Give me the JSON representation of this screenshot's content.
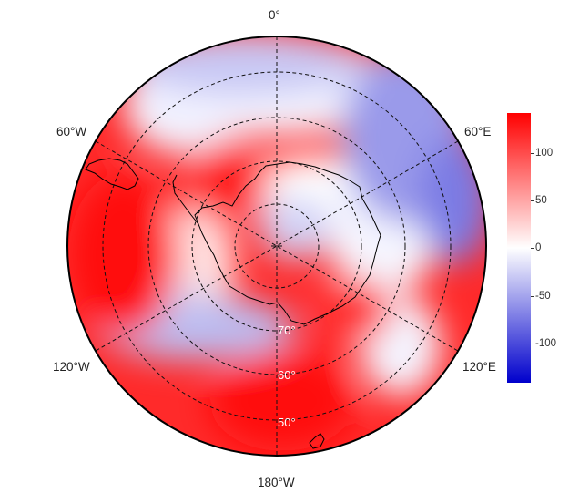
{
  "map": {
    "projection": "south polar stereographic",
    "field": "diverging anomaly (blue negative, red positive)",
    "longitude_labels": {
      "top": "0°",
      "bottom": "180°W",
      "upper_left": "60°W",
      "upper_right": "60°E",
      "lower_left": "120°W",
      "lower_right": "120°E"
    },
    "latitude_labels": [
      "70°",
      "60°",
      "50°"
    ],
    "graticule": {
      "style": "dashed",
      "color": "#111111"
    }
  },
  "colorbar": {
    "min_color": "#0000cc",
    "mid_color": "#ffffff",
    "max_color": "#ff0000",
    "range": [
      -140,
      140
    ],
    "ticks": [
      "100",
      "50",
      "0",
      "-50",
      "-100"
    ]
  }
}
